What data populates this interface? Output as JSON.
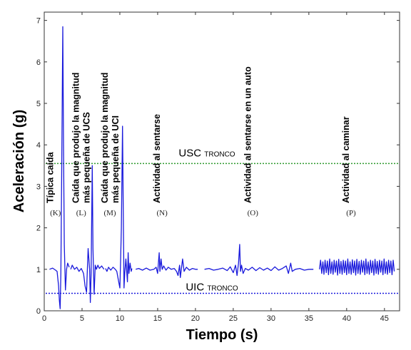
{
  "chart_data": {
    "type": "line",
    "xlabel": "Tiempo (s)",
    "ylabel": "Aceleración (g)",
    "xlim": [
      0,
      47
    ],
    "ylim": [
      0,
      7.2
    ],
    "xticks": [
      0,
      5,
      10,
      15,
      20,
      25,
      30,
      35,
      40,
      45
    ],
    "yticks": [
      0,
      1,
      2,
      3,
      4,
      5,
      6,
      7
    ],
    "grid": false,
    "line_color": "#1a1adc",
    "thresholds": [
      {
        "main": "USC",
        "sub": "TRONCO",
        "value": 3.55,
        "color": "#2e9a2e"
      },
      {
        "main": "UIC",
        "sub": "TRONCO",
        "value": 0.42,
        "color": "#1a1adc"
      }
    ],
    "annotations": [
      {
        "lines": [
          "Típica caída"
        ],
        "letter": "(K)",
        "x": 1.2
      },
      {
        "lines": [
          "Caída que produjo la magnitud",
          "más pequeña de UCS"
        ],
        "letter": "(L)",
        "x": 4.6
      },
      {
        "lines": [
          "Caída que produjo la magnitud",
          "más pequeña de UCI"
        ],
        "letter": "(M)",
        "x": 8.4
      },
      {
        "lines": [
          "Actividad al sentarse"
        ],
        "letter": "(N)",
        "x": 15.3
      },
      {
        "lines": [
          "Actividad al sentarse en un auto"
        ],
        "letter": "(O)",
        "x": 27.3
      },
      {
        "lines": [
          "Actividad al caminar"
        ],
        "letter": "(P)",
        "x": 40.3
      }
    ],
    "segments": [
      {
        "name": "K",
        "points": [
          [
            0.7,
            1.0
          ],
          [
            1.1,
            1.03
          ],
          [
            1.5,
            0.98
          ],
          [
            1.7,
            0.95
          ],
          [
            1.9,
            0.6
          ],
          [
            2.0,
            0.25
          ],
          [
            2.1,
            0.05
          ],
          [
            2.2,
            0.9
          ],
          [
            2.3,
            3.2
          ],
          [
            2.45,
            6.85
          ],
          [
            2.55,
            4.0
          ],
          [
            2.65,
            1.6
          ],
          [
            2.8,
            0.5
          ],
          [
            2.95,
            1.0
          ],
          [
            3.1,
            1.15
          ],
          [
            3.3,
            1.05
          ]
        ]
      },
      {
        "name": "L",
        "points": [
          [
            3.5,
            1.0
          ],
          [
            3.7,
            1.1
          ],
          [
            4.0,
            1.0
          ],
          [
            4.3,
            1.05
          ],
          [
            4.6,
            0.95
          ],
          [
            4.9,
            1.02
          ],
          [
            5.2,
            0.9
          ],
          [
            5.4,
            0.6
          ],
          [
            5.6,
            0.45
          ],
          [
            5.8,
            1.5
          ],
          [
            6.0,
            1.0
          ],
          [
            6.1,
            0.2
          ],
          [
            6.2,
            0.9
          ],
          [
            6.35,
            3.5
          ],
          [
            6.45,
            1.5
          ],
          [
            6.6,
            0.4
          ],
          [
            6.75,
            1.1
          ],
          [
            6.9,
            1.0
          ],
          [
            7.1,
            1.1
          ],
          [
            7.3,
            1.02
          ],
          [
            7.6,
            1.08
          ],
          [
            7.9,
            1.0
          ]
        ]
      },
      {
        "name": "M",
        "points": [
          [
            8.1,
            1.02
          ],
          [
            8.3,
            0.95
          ],
          [
            8.5,
            1.05
          ],
          [
            8.8,
            0.98
          ],
          [
            9.1,
            1.05
          ],
          [
            9.4,
            1.0
          ],
          [
            9.6,
            0.95
          ],
          [
            9.8,
            0.75
          ],
          [
            10.0,
            0.55
          ],
          [
            10.1,
            1.2
          ],
          [
            10.2,
            2.0
          ],
          [
            10.35,
            4.45
          ],
          [
            10.45,
            2.5
          ],
          [
            10.55,
            0.55
          ],
          [
            10.65,
            0.9
          ],
          [
            10.8,
            1.25
          ],
          [
            11.0,
            0.7
          ],
          [
            11.1,
            1.4
          ],
          [
            11.2,
            0.9
          ],
          [
            11.35,
            1.15
          ],
          [
            11.5,
            0.95
          ],
          [
            11.6,
            1.02
          ]
        ]
      },
      {
        "name": "N",
        "points": [
          [
            12.1,
            1.0
          ],
          [
            12.5,
            1.02
          ],
          [
            13.0,
            0.98
          ],
          [
            13.5,
            1.03
          ],
          [
            14.0,
            0.98
          ],
          [
            14.5,
            1.0
          ],
          [
            14.8,
            1.05
          ],
          [
            15.0,
            0.9
          ],
          [
            15.2,
            1.4
          ],
          [
            15.3,
            0.95
          ],
          [
            15.45,
            1.25
          ],
          [
            15.6,
            1.0
          ],
          [
            15.8,
            1.08
          ],
          [
            16.1,
            0.98
          ],
          [
            16.4,
            1.05
          ],
          [
            16.8,
            1.0
          ],
          [
            17.2,
            1.02
          ],
          [
            17.5,
            0.95
          ],
          [
            17.7,
            0.85
          ],
          [
            17.9,
            1.1
          ],
          [
            18.0,
            0.8
          ],
          [
            18.3,
            1.25
          ],
          [
            18.5,
            0.95
          ],
          [
            18.8,
            1.05
          ],
          [
            19.2,
            0.98
          ],
          [
            19.6,
            1.02
          ],
          [
            20.0,
            1.0
          ],
          [
            20.3,
            1.0
          ]
        ]
      },
      {
        "name": "O",
        "points": [
          [
            21.2,
            1.0
          ],
          [
            21.8,
            1.02
          ],
          [
            22.4,
            0.98
          ],
          [
            23.0,
            1.0
          ],
          [
            23.6,
            1.03
          ],
          [
            24.2,
            0.97
          ],
          [
            24.6,
            1.06
          ],
          [
            25.0,
            0.92
          ],
          [
            25.3,
            1.1
          ],
          [
            25.5,
            0.85
          ],
          [
            25.7,
            1.15
          ],
          [
            25.85,
            1.6
          ],
          [
            25.95,
            0.95
          ],
          [
            26.1,
            1.1
          ],
          [
            26.3,
            0.9
          ],
          [
            26.6,
            1.02
          ],
          [
            27.0,
            0.98
          ],
          [
            27.5,
            1.05
          ],
          [
            28.0,
            0.97
          ],
          [
            28.5,
            1.04
          ],
          [
            29.0,
            0.98
          ],
          [
            29.5,
            1.03
          ],
          [
            30.0,
            0.97
          ],
          [
            30.5,
            1.06
          ],
          [
            31.0,
            0.98
          ],
          [
            31.5,
            1.02
          ],
          [
            32.0,
            1.08
          ],
          [
            32.3,
            0.9
          ],
          [
            32.6,
            1.15
          ],
          [
            32.8,
            0.95
          ],
          [
            33.2,
            1.0
          ],
          [
            33.8,
            1.02
          ],
          [
            34.4,
            0.98
          ],
          [
            35.0,
            1.0
          ],
          [
            35.6,
            1.0
          ]
        ]
      },
      {
        "name": "P",
        "points": [
          [
            36.4,
            1.0
          ],
          [
            36.55,
            1.22
          ],
          [
            36.7,
            0.9
          ],
          [
            36.85,
            1.18
          ],
          [
            37.0,
            0.88
          ],
          [
            37.15,
            1.22
          ],
          [
            37.3,
            0.92
          ],
          [
            37.45,
            1.2
          ],
          [
            37.6,
            0.87
          ],
          [
            37.75,
            1.25
          ],
          [
            37.9,
            0.9
          ],
          [
            38.05,
            1.18
          ],
          [
            38.2,
            0.88
          ],
          [
            38.35,
            1.22
          ],
          [
            38.5,
            0.93
          ],
          [
            38.65,
            1.2
          ],
          [
            38.8,
            0.86
          ],
          [
            38.95,
            1.24
          ],
          [
            39.1,
            0.9
          ],
          [
            39.25,
            1.19
          ],
          [
            39.4,
            0.88
          ],
          [
            39.55,
            1.22
          ],
          [
            39.7,
            0.92
          ],
          [
            39.85,
            1.2
          ],
          [
            40.0,
            0.87
          ],
          [
            40.15,
            1.25
          ],
          [
            40.3,
            0.9
          ],
          [
            40.45,
            1.18
          ],
          [
            40.6,
            0.88
          ],
          [
            40.75,
            1.23
          ],
          [
            40.9,
            0.92
          ],
          [
            41.05,
            1.2
          ],
          [
            41.2,
            0.86
          ],
          [
            41.35,
            1.24
          ],
          [
            41.5,
            0.9
          ],
          [
            41.65,
            1.19
          ],
          [
            41.8,
            0.88
          ],
          [
            41.95,
            1.22
          ],
          [
            42.1,
            0.93
          ],
          [
            42.25,
            1.2
          ],
          [
            42.4,
            0.87
          ],
          [
            42.55,
            1.25
          ],
          [
            42.7,
            0.9
          ],
          [
            42.85,
            1.18
          ],
          [
            43.0,
            0.88
          ],
          [
            43.15,
            1.22
          ],
          [
            43.3,
            0.92
          ],
          [
            43.45,
            1.2
          ],
          [
            43.6,
            0.86
          ],
          [
            43.75,
            1.24
          ],
          [
            43.9,
            0.9
          ],
          [
            44.05,
            1.19
          ],
          [
            44.2,
            0.88
          ],
          [
            44.35,
            1.22
          ],
          [
            44.5,
            0.93
          ],
          [
            44.65,
            1.2
          ],
          [
            44.8,
            0.87
          ],
          [
            44.95,
            1.25
          ],
          [
            45.1,
            0.9
          ],
          [
            45.25,
            1.18
          ],
          [
            45.4,
            0.88
          ],
          [
            45.55,
            1.22
          ],
          [
            45.7,
            0.92
          ],
          [
            45.85,
            1.2
          ],
          [
            46.0,
            0.87
          ],
          [
            46.15,
            1.22
          ],
          [
            46.3,
            0.95
          ]
        ]
      }
    ]
  }
}
